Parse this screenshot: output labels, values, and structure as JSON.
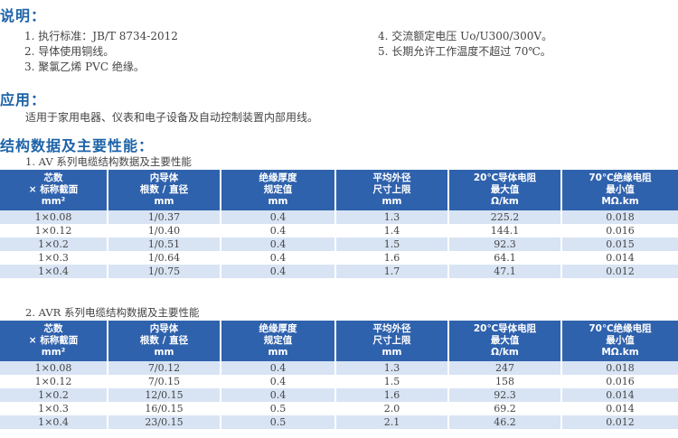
{
  "intro": {
    "title": "说明：",
    "items_left": [
      "1. 执行标准：JB/T 8734-2012",
      "2. 导体使用铜线。",
      "3. 聚氯乙烯 PVC 绝缘。"
    ],
    "items_right": [
      "4. 交流额定电压 Uo/U300/300V。",
      "5. 长期允许工作温度不超过 70℃。"
    ]
  },
  "application": {
    "title": "应用：",
    "text": "适用于家用电器、仪表和电子设备及自动控制装置内部用线。"
  },
  "structure_title": "结构数据及主要性能：",
  "headers": [
    [
      "芯数",
      "× 标称截面",
      "mm²"
    ],
    [
      "内导体",
      "根数 / 直径",
      "mm"
    ],
    [
      "绝缘厚度",
      "规定值",
      "mm"
    ],
    [
      "平均外径",
      "尺寸上限",
      "mm"
    ],
    [
      "20℃导体电阻",
      "最大值",
      "Ω/km"
    ],
    [
      "70℃绝缘电阻",
      "最小值",
      "MΩ.km"
    ]
  ],
  "tables": [
    {
      "caption": "1. AV 系列电缆结构数据及主要性能",
      "rows": [
        [
          "1×0.08",
          "1/0.37",
          "0.4",
          "1.3",
          "225.2",
          "0.018"
        ],
        [
          "1×0.12",
          "1/0.40",
          "0.4",
          "1.4",
          "144.1",
          "0.016"
        ],
        [
          "1×0.2",
          "1/0.51",
          "0.4",
          "1.5",
          "92.3",
          "0.015"
        ],
        [
          "1×0.3",
          "1/0.64",
          "0.4",
          "1.6",
          "64.1",
          "0.014"
        ],
        [
          "1×0.4",
          "1/0.75",
          "0.4",
          "1.7",
          "47.1",
          "0.012"
        ]
      ]
    },
    {
      "caption": "2. AVR 系列电缆结构数据及主要性能",
      "rows": [
        [
          "1×0.08",
          "7/0.12",
          "0.4",
          "1.3",
          "247",
          "0.018"
        ],
        [
          "1×0.12",
          "7/0.15",
          "0.4",
          "1.5",
          "158",
          "0.016"
        ],
        [
          "1×0.2",
          "12/0.15",
          "0.4",
          "1.6",
          "92.3",
          "0.014"
        ],
        [
          "1×0.3",
          "16/0.15",
          "0.5",
          "2.0",
          "69.2",
          "0.014"
        ],
        [
          "1×0.4",
          "23/0.15",
          "0.5",
          "2.1",
          "46.2",
          "0.012"
        ]
      ]
    }
  ],
  "colors": {
    "heading": "#1d63a8",
    "header_bg": "#2f62ad",
    "row_alt": "#d8e4f4"
  }
}
